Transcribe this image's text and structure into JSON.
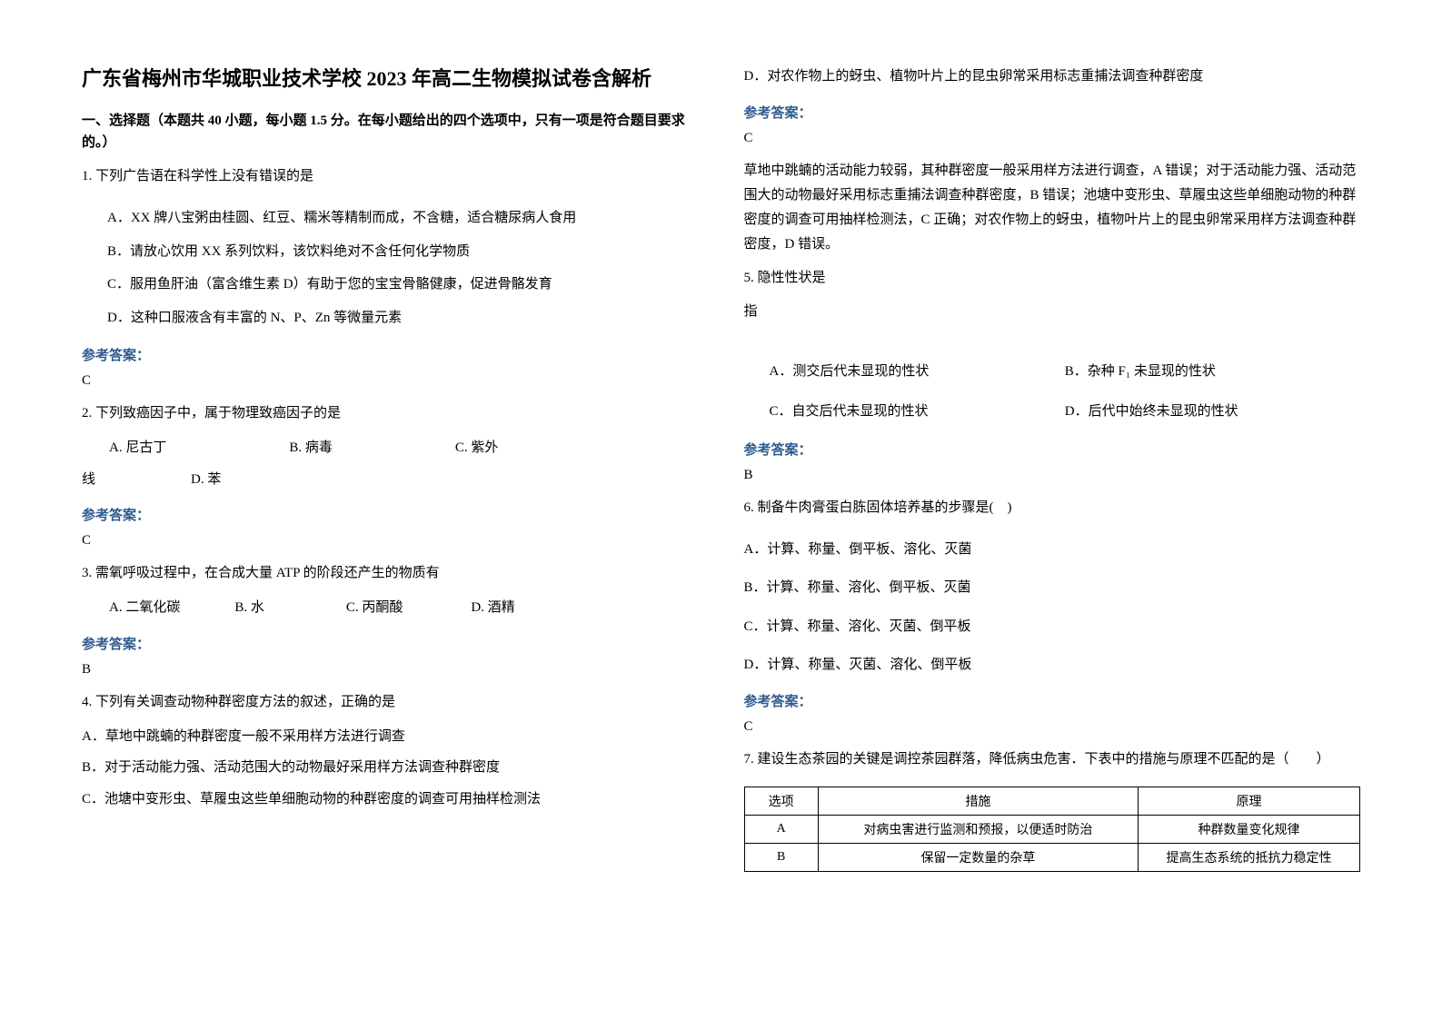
{
  "title": "广东省梅州市华城职业技术学校 2023 年高二生物模拟试卷含解析",
  "section_header": "一、选择题（本题共 40 小题，每小题 1.5 分。在每小题给出的四个选项中，只有一项是符合题目要求的。）",
  "answer_label": "参考答案：",
  "q1": {
    "stem": "1. 下列广告语在科学性上没有错误的是",
    "A": "A．XX 牌八宝粥由桂圆、红豆、糯米等精制而成，不含糖，适合糖尿病人食用",
    "B": "B．请放心饮用 XX 系列饮料，该饮料绝对不含任何化学物质",
    "C": "C．服用鱼肝油（富含维生素 D）有助于您的宝宝骨骼健康，促进骨骼发育",
    "D": "D．这种口服液含有丰富的 N、P、Zn 等微量元素",
    "answer": "C"
  },
  "q2": {
    "stem": "2. 下列致癌因子中，属于物理致癌因子的是",
    "line1": "　　A. 尼古丁　　　　　　　　　B. 病毒　　　　　　　　　C. 紫外",
    "line2": "线　　　　　　　D. 苯",
    "answer": "C"
  },
  "q3": {
    "stem": "3. 需氧呼吸过程中，在合成大量 ATP 的阶段还产生的物质有",
    "opts": "　　A. 二氧化碳　　　　B. 水　　　　　　C. 丙酮酸　　　　　D. 酒精",
    "answer": "B"
  },
  "q4": {
    "stem": "4. 下列有关调查动物种群密度方法的叙述，正确的是",
    "A": "A．草地中跳蝻的种群密度一般不采用样方法进行调查",
    "B": "B．对于活动能力强、活动范围大的动物最好采用样方法调查种群密度",
    "C": "C．池塘中变形虫、草履虫这些单细胞动物的种群密度的调查可用抽样检测法",
    "D": "D．对农作物上的蚜虫、植物叶片上的昆虫卵常采用标志重捕法调查种群密度",
    "answer": "C",
    "explanation": "草地中跳蝻的活动能力较弱，其种群密度一般采用样方法进行调查，A 错误；对于活动能力强、活动范围大的动物最好采用标志重捕法调查种群密度，B 错误；池塘中变形虫、草履虫这些单细胞动物的种群密度的调查可用抽样检测法，C 正确；对农作物上的蚜虫，植物叶片上的昆虫卵常采用样方法调查种群密度，D 错误。"
  },
  "q5": {
    "stem1": "5. 隐性性状是",
    "stem2": "指",
    "A": "A．测交后代未显现的性状",
    "B": "B．杂种 F₁ 未显现的性状",
    "C": "C．自交后代未显现的性状",
    "D": "D．后代中始终未显现的性状",
    "answer": "B"
  },
  "q6": {
    "stem": "6. 制备牛肉膏蛋白胨固体培养基的步骤是(　)",
    "A": "A．计算、称量、倒平板、溶化、灭菌",
    "B": "B．计算、称量、溶化、倒平板、灭菌",
    "C": "C．计算、称量、溶化、灭菌、倒平板",
    "D": "D．计算、称量、灭菌、溶化、倒平板",
    "answer": "C"
  },
  "q7": {
    "stem": "7. 建设生态茶园的关键是调控茶园群落，降低病虫危害．下表中的措施与原理不匹配的是（　　）",
    "table": {
      "columns": [
        "选项",
        "措施",
        "原理"
      ],
      "rows": [
        [
          "A",
          "对病虫害进行监测和预报，以便适时防治",
          "种群数量变化规律"
        ],
        [
          "B",
          "保留一定数量的杂草",
          "提高生态系统的抵抗力稳定性"
        ]
      ],
      "col_widths": [
        "12%",
        "52%",
        "36%"
      ]
    }
  },
  "colors": {
    "text": "#000000",
    "answer_label": "#2e5a8f",
    "background": "#ffffff",
    "table_border": "#000000"
  },
  "fonts": {
    "title_size": 22,
    "body_size": 15,
    "table_size": 14
  }
}
